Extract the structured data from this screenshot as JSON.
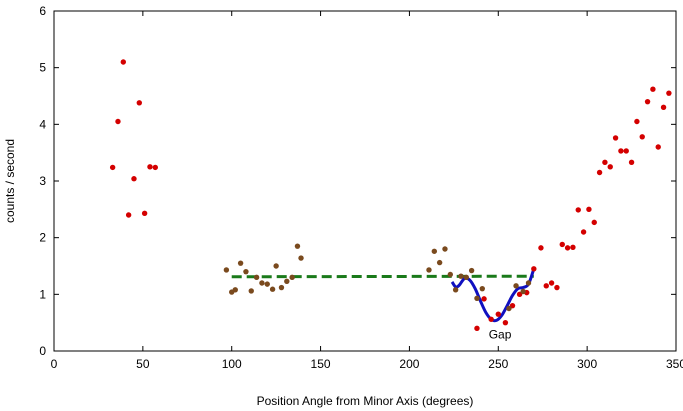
{
  "chart_data": {
    "type": "scatter",
    "xlabel": "Position Angle from Minor Axis (degrees)",
    "ylabel": "counts / second",
    "xlim": [
      0,
      350
    ],
    "ylim": [
      0,
      6
    ],
    "xticks": [
      "0",
      "50",
      "100",
      "150",
      "200",
      "250",
      "300",
      "350"
    ],
    "yticks": [
      "0",
      "1",
      "2",
      "3",
      "4",
      "5",
      "6"
    ],
    "grid": false,
    "annotations": [
      {
        "text": "Gap",
        "x": 251,
        "y": 0.2
      }
    ],
    "series": [
      {
        "color": "#d40000",
        "points": [
          [
            33,
            3.24
          ],
          [
            36,
            4.05
          ],
          [
            39,
            5.1
          ],
          [
            42,
            2.4
          ],
          [
            45,
            3.04
          ],
          [
            48,
            4.38
          ],
          [
            51,
            2.43
          ],
          [
            54,
            3.25
          ],
          [
            57,
            3.24
          ],
          [
            238,
            0.4
          ],
          [
            242,
            0.92
          ],
          [
            246,
            0.56
          ],
          [
            250,
            0.65
          ],
          [
            254,
            0.5
          ],
          [
            258,
            0.8
          ],
          [
            262,
            1.0
          ],
          [
            266,
            1.03
          ],
          [
            270,
            1.45
          ],
          [
            274,
            1.82
          ],
          [
            277,
            1.15
          ],
          [
            280,
            1.2
          ],
          [
            283,
            1.12
          ],
          [
            286,
            1.88
          ],
          [
            289,
            1.82
          ],
          [
            292,
            1.83
          ],
          [
            295,
            2.49
          ],
          [
            298,
            2.1
          ],
          [
            301,
            2.5
          ],
          [
            304,
            2.27
          ],
          [
            307,
            3.15
          ],
          [
            310,
            3.33
          ],
          [
            313,
            3.25
          ],
          [
            316,
            3.76
          ],
          [
            319,
            3.53
          ],
          [
            322,
            3.53
          ],
          [
            325,
            3.33
          ],
          [
            328,
            4.05
          ],
          [
            331,
            3.78
          ],
          [
            334,
            4.4
          ],
          [
            337,
            4.62
          ],
          [
            340,
            3.6
          ],
          [
            343,
            4.3
          ],
          [
            346,
            4.55
          ]
        ]
      },
      {
        "color": "#7a4a1e",
        "points": [
          [
            97,
            1.43
          ],
          [
            100,
            1.04
          ],
          [
            102,
            1.08
          ],
          [
            105,
            1.55
          ],
          [
            108,
            1.4
          ],
          [
            111,
            1.06
          ],
          [
            114,
            1.3
          ],
          [
            117,
            1.2
          ],
          [
            120,
            1.18
          ],
          [
            123,
            1.09
          ],
          [
            125,
            1.5
          ],
          [
            128,
            1.12
          ],
          [
            131,
            1.23
          ],
          [
            134,
            1.3
          ],
          [
            137,
            1.85
          ],
          [
            139,
            1.64
          ],
          [
            211,
            1.43
          ],
          [
            214,
            1.76
          ],
          [
            217,
            1.56
          ],
          [
            220,
            1.8
          ],
          [
            223,
            1.35
          ],
          [
            226,
            1.08
          ],
          [
            229,
            1.32
          ],
          [
            232,
            1.3
          ],
          [
            235,
            1.42
          ],
          [
            238,
            0.93
          ],
          [
            241,
            1.1
          ],
          [
            256,
            0.75
          ],
          [
            260,
            1.15
          ],
          [
            264,
            1.05
          ],
          [
            267,
            1.2
          ]
        ]
      }
    ],
    "lines": [
      {
        "color": "#1a7a1a",
        "style": "dashed",
        "x": [
          100,
          270
        ],
        "y": [
          1.31,
          1.32
        ]
      },
      {
        "color": "#1010c0",
        "style": "solid",
        "x": [
          224,
          226,
          228,
          231,
          234,
          237,
          240,
          243,
          246,
          249,
          252,
          255,
          258,
          261,
          264,
          267,
          270
        ],
        "y": [
          1.22,
          1.13,
          1.16,
          1.28,
          1.25,
          1.1,
          0.88,
          0.68,
          0.56,
          0.54,
          0.63,
          0.8,
          0.98,
          1.1,
          1.12,
          1.18,
          1.45
        ]
      }
    ]
  }
}
